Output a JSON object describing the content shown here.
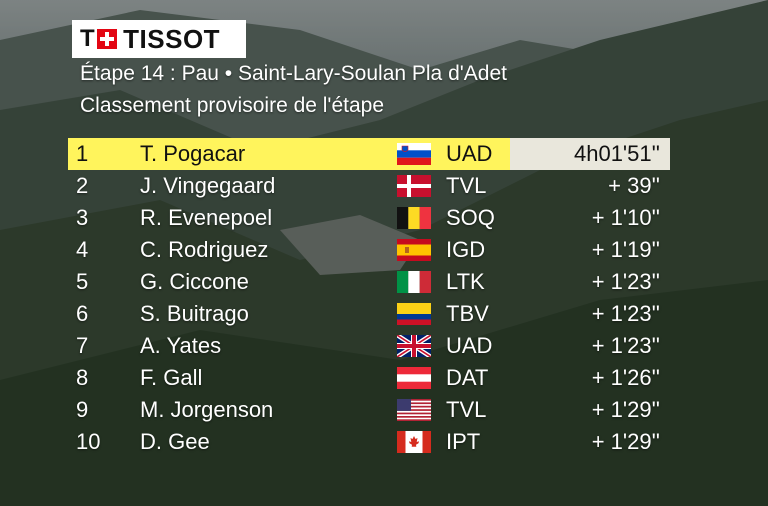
{
  "brand": {
    "logo_text": "TISSOT",
    "logo_prefix": "T"
  },
  "header": {
    "stage": "Étape 14 : Pau •  Saint-Lary-Soulan Pla d'Adet",
    "subtitle": "Classement provisoire de l'étape"
  },
  "rows": [
    {
      "rank": "1",
      "name": "T. Pogacar",
      "flag": "slovenia-flag",
      "team": "UAD",
      "time": "4h01'51''"
    },
    {
      "rank": "2",
      "name": "J. Vingegaard",
      "flag": "denmark-flag",
      "team": "TVL",
      "time": "+  39''"
    },
    {
      "rank": "3",
      "name": "R. Evenepoel",
      "flag": "belgium-flag",
      "team": "SOQ",
      "time": "+ 1'10''"
    },
    {
      "rank": "4",
      "name": "C. Rodriguez",
      "flag": "spain-flag",
      "team": "IGD",
      "time": "+ 1'19''"
    },
    {
      "rank": "5",
      "name": "G. Ciccone",
      "flag": "italy-flag",
      "team": "LTK",
      "time": "+ 1'23''"
    },
    {
      "rank": "6",
      "name": "S. Buitrago",
      "flag": "colombia-flag",
      "team": "TBV",
      "time": "+ 1'23''"
    },
    {
      "rank": "7",
      "name": "A. Yates",
      "flag": "uk-flag",
      "team": "UAD",
      "time": "+ 1'23''"
    },
    {
      "rank": "8",
      "name": "F. Gall",
      "flag": "austria-flag",
      "team": "DAT",
      "time": "+ 1'26''"
    },
    {
      "rank": "9",
      "name": "M. Jorgenson",
      "flag": "usa-flag",
      "team": "TVL",
      "time": "+ 1'29''"
    },
    {
      "rank": "10",
      "name": "D. Gee",
      "flag": "canada-flag",
      "team": "IPT",
      "time": "+ 1'29''"
    }
  ],
  "colors": {
    "leader_highlight": "#fff45c",
    "logo_red": "#e30613"
  }
}
